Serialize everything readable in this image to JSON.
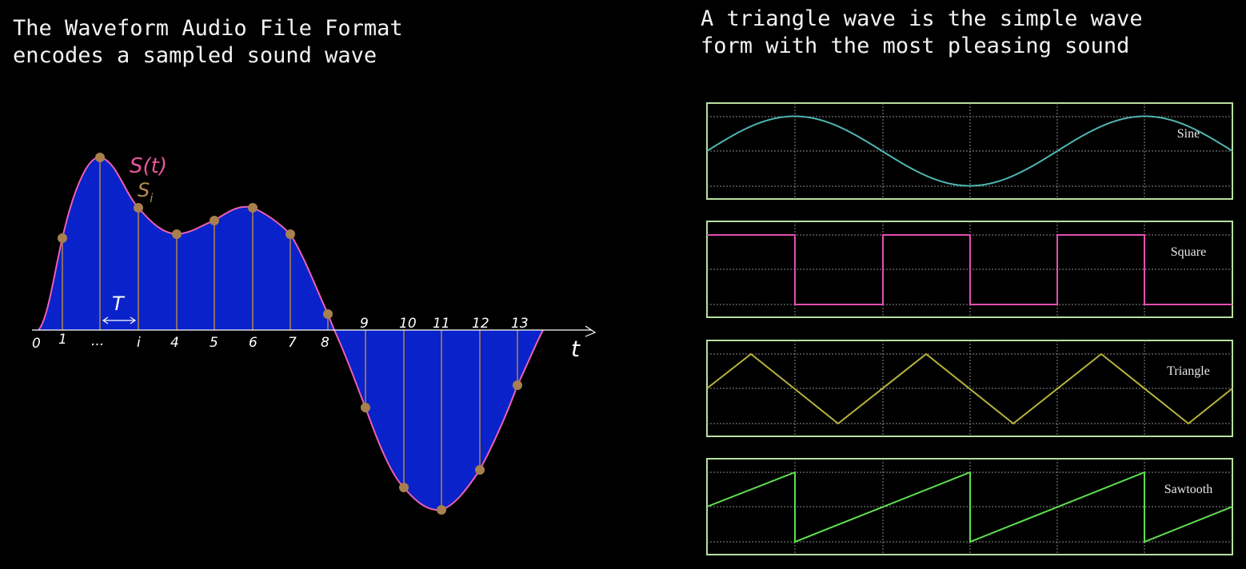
{
  "captions": {
    "left": "The Waveform Audio File Format\nencodes a sampled sound wave",
    "right": "A triangle wave is the simple wave\nform with the most pleasing sound"
  },
  "sampling_diagram": {
    "signal_label": "S(t)",
    "sample_label_main": "S",
    "sample_label_sub": "i",
    "period_label": "T",
    "time_axis_label": "t",
    "tick_labels": [
      "0",
      "1",
      "...",
      "i",
      "4",
      "5",
      "6",
      "7",
      "8",
      "9",
      "10",
      "11",
      "12",
      "13"
    ],
    "colors": {
      "fill": "#0a22c9",
      "curve": "#ee5fb0",
      "sample": "#a8804e",
      "signal_label": "#e8559e",
      "sample_label": "#b78a4d"
    }
  },
  "waveforms": [
    {
      "label": "Sine",
      "shape": "sine",
      "color": "#4fb6b0"
    },
    {
      "label": "Square",
      "shape": "square",
      "color": "#e24fb0"
    },
    {
      "label": "Triangle",
      "shape": "triangle",
      "color": "#b8b43a"
    },
    {
      "label": "Sawtooth",
      "shape": "sawtooth",
      "color": "#5fe04f"
    }
  ],
  "panel_colors": {
    "border": "#b8e0a0",
    "grid": "#8a8a8a"
  }
}
